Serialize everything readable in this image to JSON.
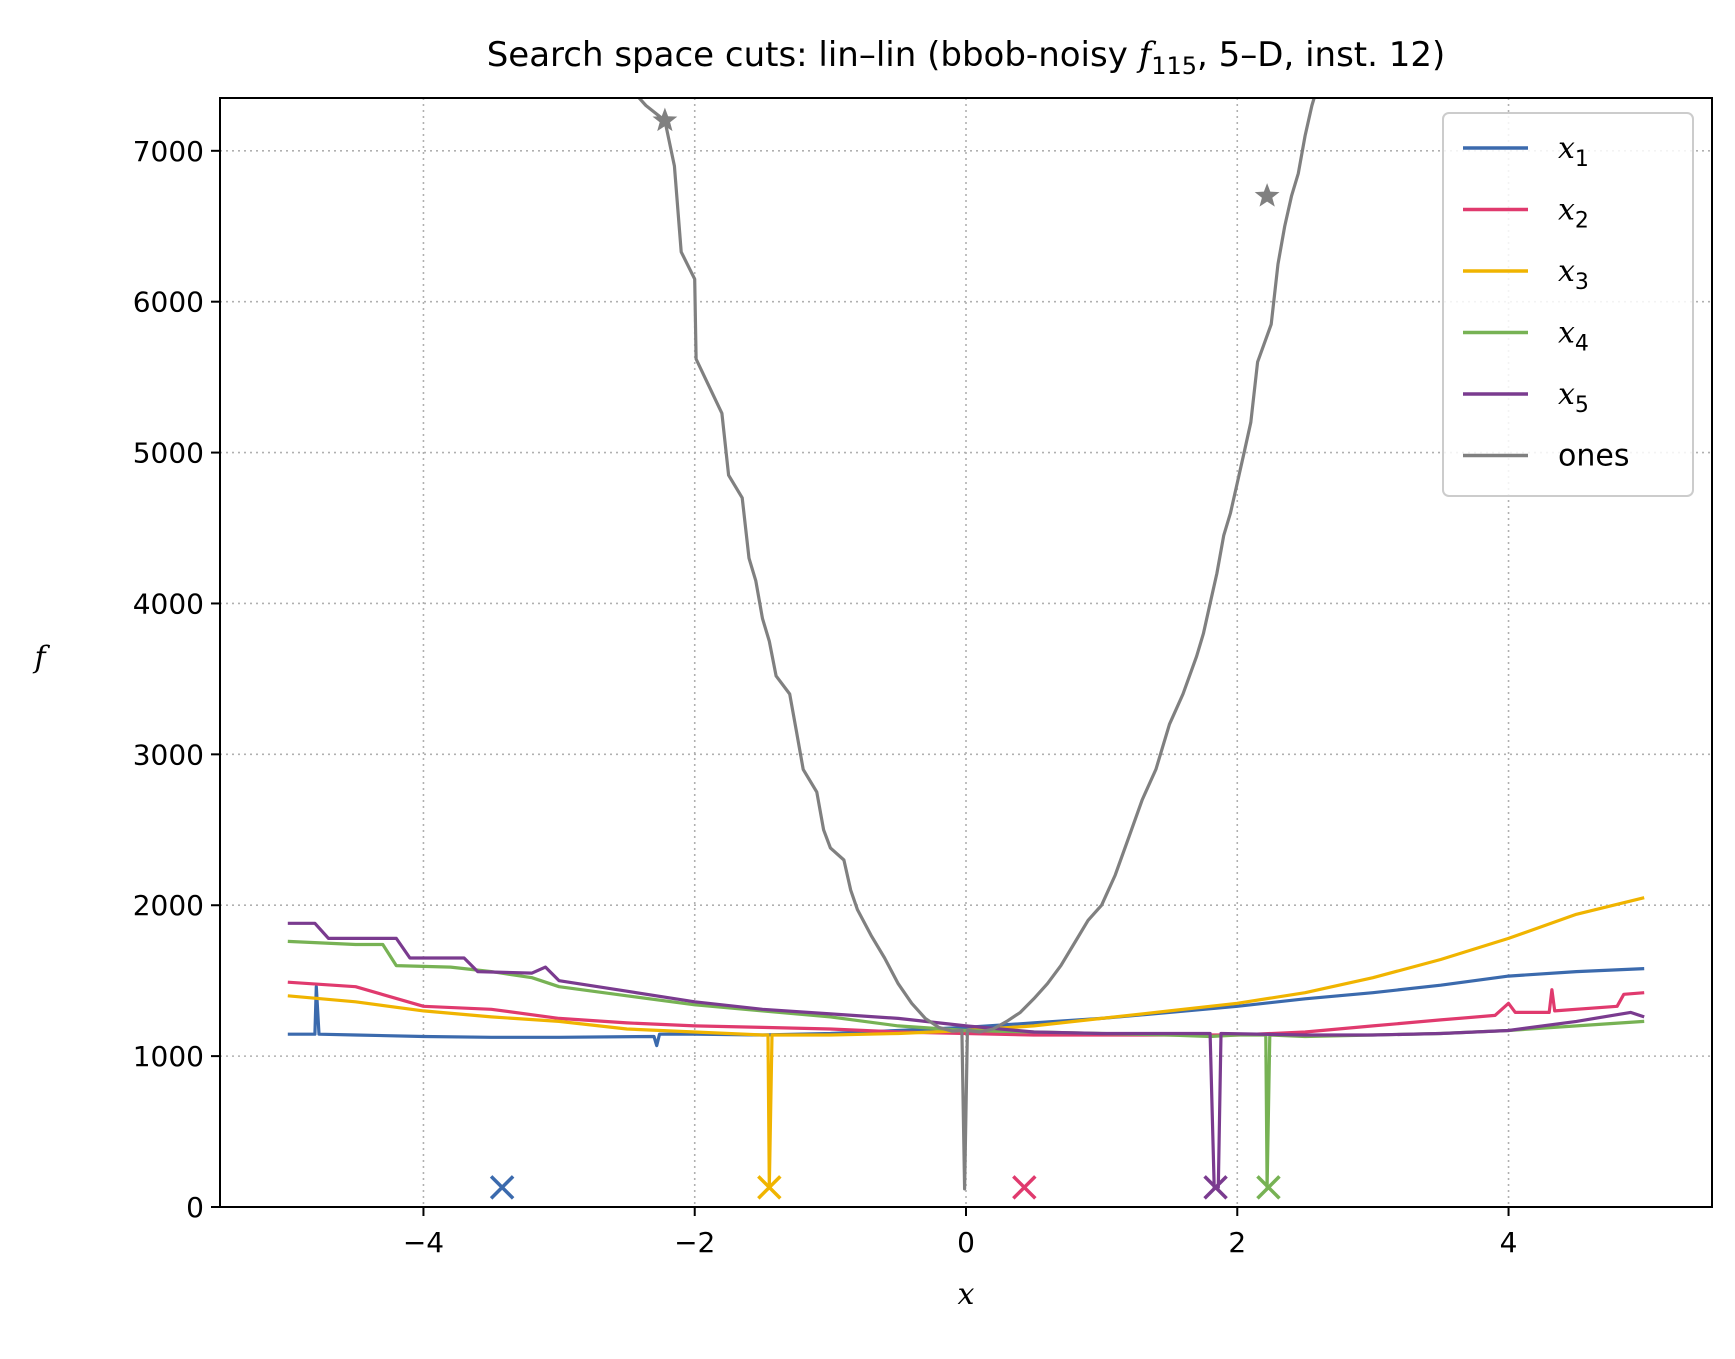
{
  "chart_data": {
    "type": "line",
    "title": {
      "prefix": "Search space cuts: lin–lin (bbob-noisy ",
      "func_symbol": "f",
      "func_subscript": "115",
      "suffix": ", 5–D, inst. 12)"
    },
    "xlabel": "x",
    "ylabel": "f",
    "xlim": [
      -5.5,
      5.5
    ],
    "ylim": [
      0,
      7350
    ],
    "xticks": [
      -4,
      -2,
      0,
      2,
      4
    ],
    "xtick_labels": [
      "−4",
      "−2",
      "0",
      "2",
      "4"
    ],
    "yticks": [
      0,
      1000,
      2000,
      3000,
      4000,
      5000,
      6000,
      7000
    ],
    "ytick_labels": [
      "0",
      "1000",
      "2000",
      "3000",
      "4000",
      "5000",
      "6000",
      "7000"
    ],
    "grid": true,
    "legend_position": "top-right",
    "series": [
      {
        "name": "x",
        "subscript": "1",
        "color": "#3b6aad",
        "points": [
          [
            -5,
            1145
          ],
          [
            -4.8,
            1145
          ],
          [
            -4.79,
            1460
          ],
          [
            -4.77,
            1145
          ],
          [
            -4.5,
            1140
          ],
          [
            -4,
            1130
          ],
          [
            -3.5,
            1125
          ],
          [
            -3,
            1125
          ],
          [
            -2.3,
            1130
          ],
          [
            -2.28,
            1070
          ],
          [
            -2.26,
            1145
          ],
          [
            -2,
            1145
          ],
          [
            -1.5,
            1140
          ],
          [
            -1,
            1150
          ],
          [
            -0.5,
            1170
          ],
          [
            0,
            1190
          ],
          [
            0.5,
            1220
          ],
          [
            1,
            1250
          ],
          [
            1.5,
            1290
          ],
          [
            2,
            1330
          ],
          [
            2.5,
            1380
          ],
          [
            3,
            1420
          ],
          [
            3.5,
            1470
          ],
          [
            4,
            1530
          ],
          [
            4.5,
            1560
          ],
          [
            5,
            1580
          ]
        ]
      },
      {
        "name": "x",
        "subscript": "2",
        "color": "#e03a6e",
        "points": [
          [
            -5,
            1490
          ],
          [
            -4.5,
            1460
          ],
          [
            -4,
            1330
          ],
          [
            -3.5,
            1310
          ],
          [
            -3,
            1250
          ],
          [
            -2.5,
            1220
          ],
          [
            -2,
            1200
          ],
          [
            -1.5,
            1190
          ],
          [
            -1,
            1180
          ],
          [
            -0.5,
            1160
          ],
          [
            0,
            1150
          ],
          [
            0.5,
            1140
          ],
          [
            1,
            1140
          ],
          [
            1.5,
            1140
          ],
          [
            2,
            1140
          ],
          [
            2.5,
            1160
          ],
          [
            3,
            1200
          ],
          [
            3.5,
            1240
          ],
          [
            3.9,
            1270
          ],
          [
            4,
            1350
          ],
          [
            4.05,
            1290
          ],
          [
            4.3,
            1290
          ],
          [
            4.32,
            1440
          ],
          [
            4.34,
            1300
          ],
          [
            4.8,
            1330
          ],
          [
            4.85,
            1410
          ],
          [
            5,
            1420
          ]
        ]
      },
      {
        "name": "x",
        "subscript": "3",
        "color": "#f0b400",
        "points": [
          [
            -5,
            1400
          ],
          [
            -4.5,
            1360
          ],
          [
            -4,
            1300
          ],
          [
            -3.5,
            1260
          ],
          [
            -3,
            1230
          ],
          [
            -2.5,
            1180
          ],
          [
            -2,
            1160
          ],
          [
            -1.5,
            1140
          ],
          [
            -1.46,
            1140
          ],
          [
            -1.45,
            130
          ],
          [
            -1.43,
            1140
          ],
          [
            -1,
            1140
          ],
          [
            -0.5,
            1150
          ],
          [
            0,
            1170
          ],
          [
            0.5,
            1200
          ],
          [
            1,
            1250
          ],
          [
            1.5,
            1300
          ],
          [
            2,
            1350
          ],
          [
            2.5,
            1420
          ],
          [
            3,
            1520
          ],
          [
            3.5,
            1640
          ],
          [
            4,
            1780
          ],
          [
            4.5,
            1940
          ],
          [
            5,
            2050
          ]
        ]
      },
      {
        "name": "x",
        "subscript": "4",
        "color": "#77b254",
        "points": [
          [
            -5,
            1760
          ],
          [
            -4.5,
            1740
          ],
          [
            -4.3,
            1740
          ],
          [
            -4.2,
            1600
          ],
          [
            -3.8,
            1590
          ],
          [
            -3.5,
            1560
          ],
          [
            -3.2,
            1520
          ],
          [
            -3,
            1460
          ],
          [
            -2.5,
            1400
          ],
          [
            -2,
            1340
          ],
          [
            -1.5,
            1300
          ],
          [
            -1,
            1260
          ],
          [
            -0.5,
            1200
          ],
          [
            0,
            1170
          ],
          [
            0.5,
            1160
          ],
          [
            1,
            1150
          ],
          [
            1.5,
            1140
          ],
          [
            1.8,
            1130
          ],
          [
            2,
            1140
          ],
          [
            2.21,
            1140
          ],
          [
            2.22,
            130
          ],
          [
            2.24,
            1140
          ],
          [
            2.5,
            1130
          ],
          [
            3,
            1140
          ],
          [
            3.5,
            1150
          ],
          [
            4,
            1170
          ],
          [
            4.5,
            1200
          ],
          [
            5,
            1230
          ]
        ]
      },
      {
        "name": "x",
        "subscript": "5",
        "color": "#7a3b8f",
        "points": [
          [
            -5,
            1880
          ],
          [
            -4.8,
            1880
          ],
          [
            -4.7,
            1780
          ],
          [
            -4.2,
            1780
          ],
          [
            -4.1,
            1650
          ],
          [
            -3.7,
            1650
          ],
          [
            -3.6,
            1560
          ],
          [
            -3.2,
            1550
          ],
          [
            -3.1,
            1590
          ],
          [
            -3,
            1500
          ],
          [
            -2.5,
            1430
          ],
          [
            -2,
            1360
          ],
          [
            -1.5,
            1310
          ],
          [
            -1,
            1280
          ],
          [
            -0.5,
            1250
          ],
          [
            0,
            1200
          ],
          [
            0.5,
            1160
          ],
          [
            1,
            1150
          ],
          [
            1.5,
            1150
          ],
          [
            1.8,
            1150
          ],
          [
            1.83,
            130
          ],
          [
            1.86,
            130
          ],
          [
            1.88,
            1150
          ],
          [
            2.5,
            1140
          ],
          [
            3,
            1140
          ],
          [
            3.5,
            1150
          ],
          [
            4,
            1170
          ],
          [
            4.5,
            1230
          ],
          [
            4.9,
            1290
          ],
          [
            5,
            1260
          ]
        ]
      },
      {
        "name": "ones",
        "color": "#808080",
        "points": [
          [
            -2.42,
            7360
          ],
          [
            -2.36,
            7300
          ],
          [
            -2.22,
            7200
          ],
          [
            -2.15,
            6900
          ],
          [
            -2.1,
            6330
          ],
          [
            -2,
            6150
          ],
          [
            -1.99,
            5620
          ],
          [
            -1.9,
            5450
          ],
          [
            -1.8,
            5260
          ],
          [
            -1.75,
            4850
          ],
          [
            -1.65,
            4700
          ],
          [
            -1.6,
            4300
          ],
          [
            -1.55,
            4150
          ],
          [
            -1.5,
            3900
          ],
          [
            -1.45,
            3750
          ],
          [
            -1.4,
            3520
          ],
          [
            -1.3,
            3400
          ],
          [
            -1.25,
            3150
          ],
          [
            -1.2,
            2900
          ],
          [
            -1.1,
            2750
          ],
          [
            -1.05,
            2500
          ],
          [
            -1,
            2380
          ],
          [
            -0.9,
            2300
          ],
          [
            -0.85,
            2100
          ],
          [
            -0.8,
            1970
          ],
          [
            -0.7,
            1800
          ],
          [
            -0.6,
            1650
          ],
          [
            -0.5,
            1480
          ],
          [
            -0.4,
            1350
          ],
          [
            -0.3,
            1250
          ],
          [
            -0.2,
            1190
          ],
          [
            -0.1,
            1165
          ],
          [
            -0.03,
            1170
          ],
          [
            -0.01,
            120
          ],
          [
            0.01,
            1170
          ],
          [
            0.1,
            1160
          ],
          [
            0.2,
            1180
          ],
          [
            0.3,
            1230
          ],
          [
            0.4,
            1290
          ],
          [
            0.5,
            1380
          ],
          [
            0.6,
            1480
          ],
          [
            0.7,
            1600
          ],
          [
            0.8,
            1750
          ],
          [
            0.9,
            1900
          ],
          [
            1,
            2000
          ],
          [
            1.1,
            2200
          ],
          [
            1.2,
            2450
          ],
          [
            1.3,
            2700
          ],
          [
            1.4,
            2900
          ],
          [
            1.5,
            3200
          ],
          [
            1.6,
            3400
          ],
          [
            1.7,
            3650
          ],
          [
            1.75,
            3800
          ],
          [
            1.8,
            4000
          ],
          [
            1.85,
            4200
          ],
          [
            1.9,
            4450
          ],
          [
            1.95,
            4600
          ],
          [
            2,
            4800
          ],
          [
            2.05,
            5000
          ],
          [
            2.1,
            5200
          ],
          [
            2.15,
            5600
          ],
          [
            2.25,
            5850
          ],
          [
            2.3,
            6250
          ],
          [
            2.35,
            6500
          ],
          [
            2.4,
            6700
          ],
          [
            2.45,
            6850
          ],
          [
            2.5,
            7100
          ],
          [
            2.55,
            7300
          ],
          [
            2.57,
            7360
          ]
        ]
      }
    ],
    "markers": [
      {
        "type": "x",
        "x": -3.42,
        "y": 130,
        "color": "#3b6aad"
      },
      {
        "type": "x",
        "x": -1.45,
        "y": 130,
        "color": "#f0b400"
      },
      {
        "type": "x",
        "x": 0.43,
        "y": 130,
        "color": "#e03a6e"
      },
      {
        "type": "x",
        "x": 1.84,
        "y": 130,
        "color": "#7a3b8f"
      },
      {
        "type": "x",
        "x": 2.23,
        "y": 130,
        "color": "#77b254"
      },
      {
        "type": "star",
        "x": -2.22,
        "y": 7200,
        "color": "#808080"
      },
      {
        "type": "star",
        "x": 2.22,
        "y": 6700,
        "color": "#808080"
      }
    ]
  }
}
